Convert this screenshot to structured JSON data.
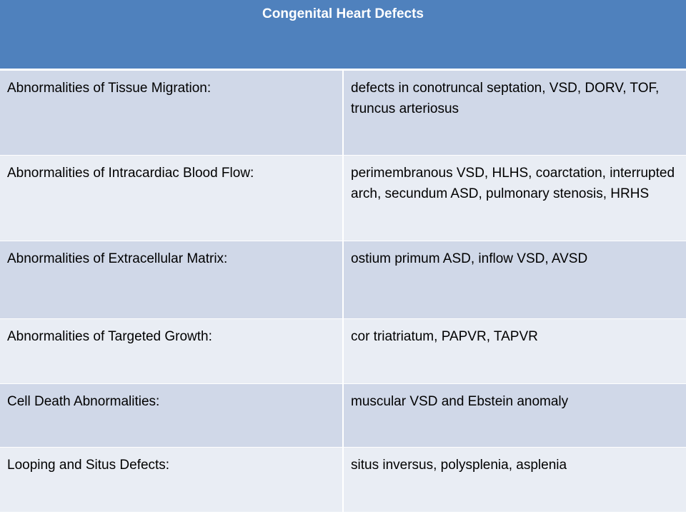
{
  "table": {
    "title": "Congenital Heart Defects",
    "rows": [
      {
        "category": "Abnormalities of Tissue Migration:",
        "defects": "defects in conotruncal septation, VSD, DORV, TOF, truncus arteriosus"
      },
      {
        "category": "Abnormalities of Intracardiac Blood Flow:",
        "defects": "perimembranous VSD, HLHS, coarctation, interrupted arch, secundum ASD, pulmonary stenosis, HRHS"
      },
      {
        "category": "Abnormalities of Extracellular Matrix:",
        "defects": "ostium primum ASD, inflow VSD, AVSD"
      },
      {
        "category": "Abnormalities of Targeted Growth:",
        "defects": "cor triatriatum, PAPVR, TAPVR"
      },
      {
        "category": "Cell Death Abnormalities:",
        "defects": "muscular VSD and Ebstein anomaly"
      },
      {
        "category": "Looping and Situs Defects:",
        "defects": "situs inversus, polysplenia, asplenia"
      }
    ]
  },
  "colors": {
    "header": "#4f81bd",
    "row_dark": "#d0d8e8",
    "row_light": "#e9edf4"
  }
}
